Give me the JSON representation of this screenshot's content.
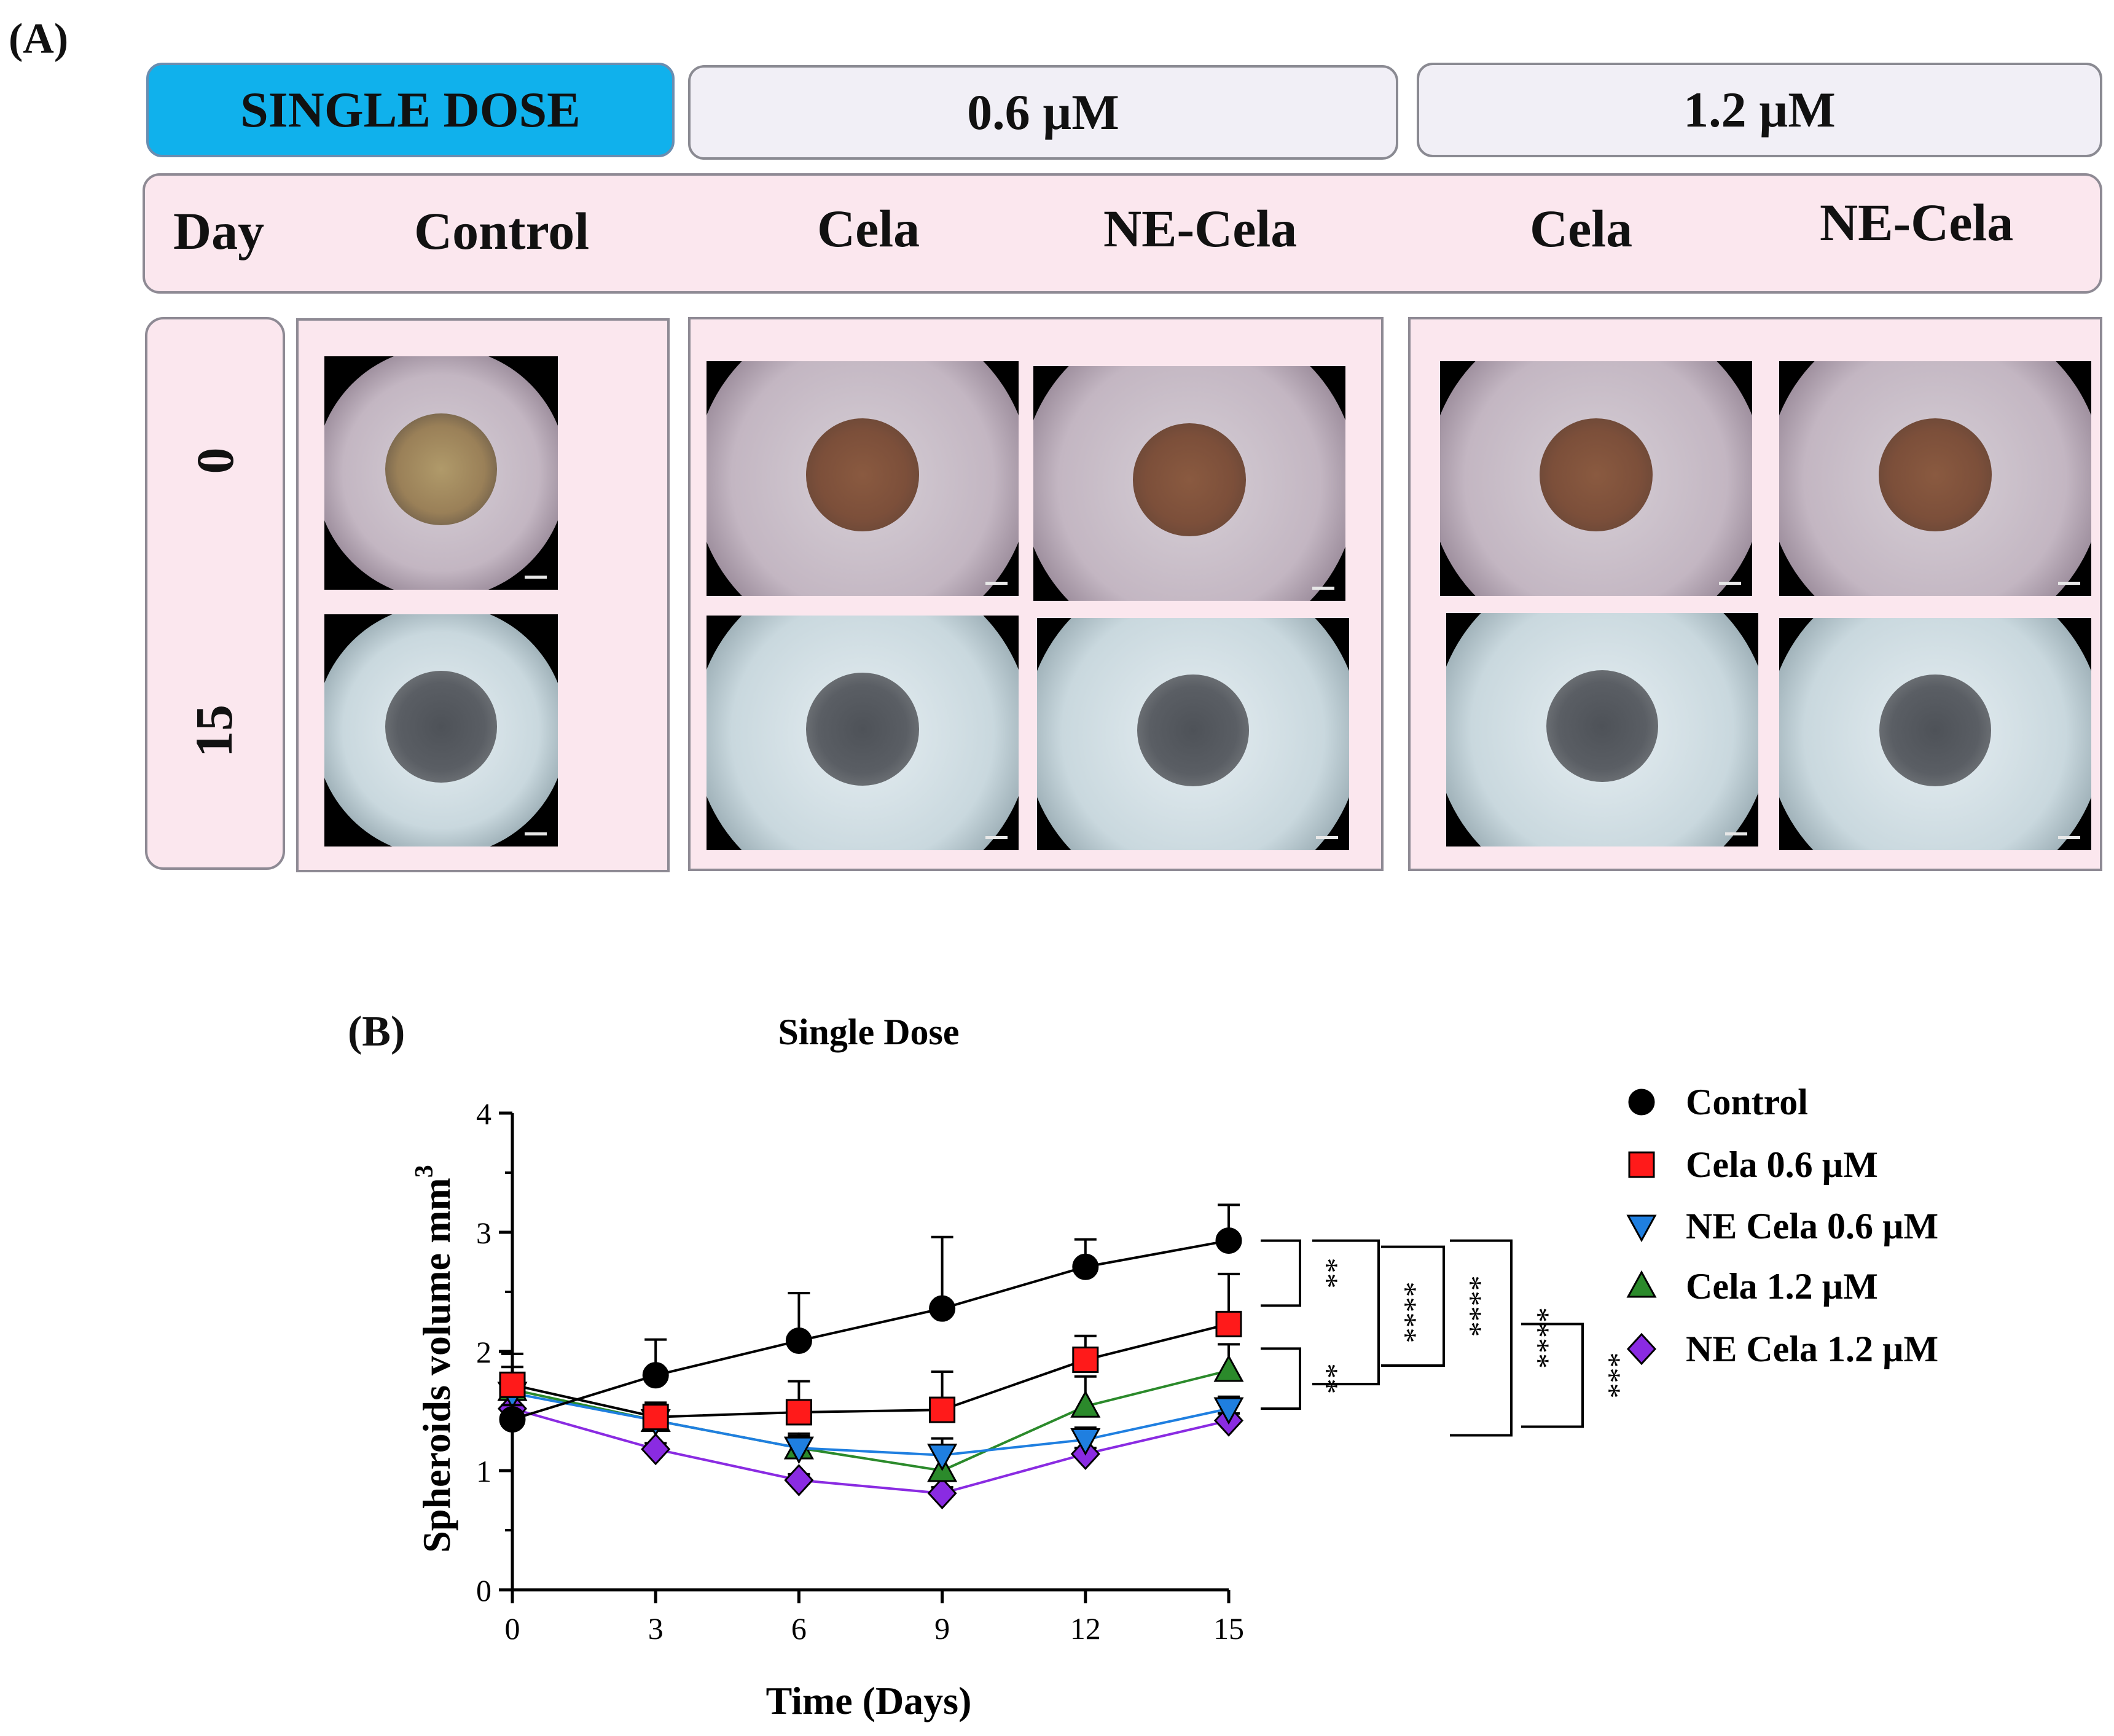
{
  "panel_a": {
    "label": "(A)",
    "headers": [
      {
        "text": "SINGLE DOSE",
        "active": true
      },
      {
        "text": "0.6 µM",
        "active": false
      },
      {
        "text": "1.2 µM",
        "active": false
      }
    ],
    "columns": {
      "day": "Day",
      "control": "Control",
      "cela_06": "Cela",
      "ne_cela_06": "NE-Cela",
      "cela_12": "Cela",
      "ne_cela_12": "NE-Cela"
    },
    "days": [
      "0",
      "15"
    ]
  },
  "panel_b": {
    "label": "(B)"
  },
  "chart_data": {
    "type": "line",
    "title": "Single Dose",
    "xlabel": "Time (Days)",
    "ylabel": "Spheroids volume mm",
    "ylabel_superscript": "3",
    "x": [
      0,
      3,
      6,
      9,
      12,
      15
    ],
    "xticks": [
      "0",
      "3",
      "6",
      "9",
      "12",
      "15"
    ],
    "yticks": [
      "0",
      "1",
      "2",
      "3",
      "4"
    ],
    "xlim": [
      0,
      15
    ],
    "ylim": [
      0,
      4
    ],
    "grid": false,
    "legend_position": "right",
    "series": [
      {
        "name": "Control",
        "marker": "circle",
        "color": "#000000",
        "values": [
          1.43,
          1.8,
          2.09,
          2.36,
          2.71,
          2.93
        ],
        "error": [
          0.12,
          0.3,
          0.4,
          0.6,
          0.23,
          0.3
        ]
      },
      {
        "name": "Cela 0.6 µM",
        "marker": "square",
        "color": "#ff1a1a",
        "values": [
          1.72,
          1.45,
          1.49,
          1.51,
          1.93,
          2.23
        ],
        "error": [
          0.15,
          0.12,
          0.26,
          0.32,
          0.2,
          0.42
        ]
      },
      {
        "name": "NE Cela 0.6 µM",
        "marker": "triangle-down",
        "color": "#1f7fe0",
        "values": [
          1.65,
          1.42,
          1.19,
          1.13,
          1.26,
          1.52
        ],
        "error": [
          0.12,
          0.1,
          0.1,
          0.14,
          0.1,
          0.1
        ]
      },
      {
        "name": "Cela 1.2 µM",
        "marker": "triangle-up",
        "color": "#2b8a2b",
        "values": [
          1.68,
          1.42,
          1.19,
          1.0,
          1.54,
          1.84
        ],
        "error": [
          0.3,
          0.1,
          0.12,
          0.2,
          0.25,
          0.22
        ]
      },
      {
        "name": "NE Cela 1.2 µM",
        "marker": "diamond",
        "color": "#8a2be2",
        "values": [
          1.52,
          1.18,
          0.92,
          0.81,
          1.14,
          1.42
        ],
        "error": [
          0.1,
          0.05,
          0.05,
          0.05,
          0.05,
          0.06
        ]
      }
    ],
    "significance": [
      {
        "label": "**"
      },
      {
        "label": "**"
      },
      {
        "label": "****"
      },
      {
        "label": "****"
      },
      {
        "label": "****"
      },
      {
        "label": "***"
      }
    ]
  }
}
